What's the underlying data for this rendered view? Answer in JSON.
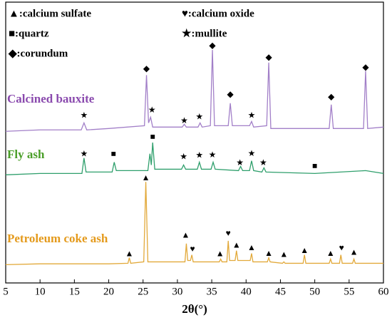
{
  "chart_data": {
    "type": "line",
    "xlabel": "2θ(°)",
    "xlim": [
      5,
      60
    ],
    "xticks": [
      5,
      10,
      15,
      20,
      25,
      30,
      35,
      40,
      45,
      50,
      55,
      60
    ],
    "ylim": [
      0,
      100
    ],
    "legend_items": [
      "▲:calcium sulfate",
      "♥:calcium oxide",
      "■:quartz",
      "★:mullite",
      "◆:corundum"
    ],
    "series": [
      {
        "name": "Calcined bauxite",
        "color": "#a27fc8",
        "label_color": "#8a4aae",
        "x": [
          5,
          10,
          15,
          16.0,
          16.4,
          16.8,
          20,
          25.2,
          25.5,
          25.8,
          26.1,
          26.4,
          30,
          30.7,
          31.0,
          31.3,
          33.0,
          33.3,
          33.6,
          34.8,
          35.1,
          35.4,
          37.4,
          37.7,
          38.0,
          40.5,
          40.8,
          41.1,
          43.0,
          43.3,
          43.6,
          50,
          52.1,
          52.4,
          52.7,
          55,
          57.1,
          57.4,
          57.7,
          60
        ],
        "values": [
          54,
          54.5,
          54.5,
          54.5,
          57,
          54.5,
          55,
          56,
          74,
          57,
          59,
          55.5,
          55.5,
          55.5,
          56.5,
          55.5,
          55.5,
          57,
          55.5,
          56,
          83,
          56,
          56,
          64,
          56,
          56,
          57.5,
          55.5,
          56,
          78.5,
          55,
          55,
          55,
          63.5,
          55,
          55,
          55,
          75.5,
          55,
          55.5
        ],
        "markers": [
          {
            "symbol": "★",
            "x": 16.4,
            "y": 59.4
          },
          {
            "symbol": "◆",
            "x": 25.5,
            "y": 76.1
          },
          {
            "symbol": "★",
            "x": 26.3,
            "y": 61.4
          },
          {
            "symbol": "★",
            "x": 31.0,
            "y": 57.6
          },
          {
            "symbol": "★",
            "x": 33.2,
            "y": 58.9
          },
          {
            "symbol": "◆",
            "x": 35.1,
            "y": 84.3
          },
          {
            "symbol": "◆",
            "x": 37.7,
            "y": 67
          },
          {
            "symbol": "★",
            "x": 40.8,
            "y": 59.4
          },
          {
            "symbol": "◆",
            "x": 43.3,
            "y": 80.2
          },
          {
            "symbol": "◆",
            "x": 52.4,
            "y": 66
          },
          {
            "symbol": "◆",
            "x": 57.4,
            "y": 76.6
          }
        ]
      },
      {
        "name": "Fly ash",
        "color": "#2f9f6c",
        "label_color": "#4a9e28",
        "x": [
          5,
          10,
          16.1,
          16.4,
          16.7,
          20.5,
          20.8,
          21.1,
          25.7,
          26.0,
          26.2,
          26.4,
          26.7,
          30.6,
          30.9,
          31.2,
          32.9,
          33.2,
          33.5,
          34.9,
          35.2,
          35.5,
          38.9,
          39.2,
          39.5,
          40.5,
          40.8,
          41.1,
          42.3,
          42.6,
          42.9,
          50,
          57.4,
          60
        ],
        "values": [
          38.5,
          39,
          39,
          44.5,
          39.5,
          39.5,
          43,
          40,
          40,
          46,
          42,
          50,
          40.5,
          40.5,
          42,
          40.5,
          40.5,
          43,
          40.5,
          40.5,
          43,
          40.5,
          40,
          41.5,
          40,
          40,
          43.5,
          40,
          39.5,
          41,
          39.5,
          39,
          40,
          39
        ],
        "markers": [
          {
            "symbol": "★",
            "x": 16.4,
            "y": 45.7
          },
          {
            "symbol": "■",
            "x": 20.7,
            "y": 45.7
          },
          {
            "symbol": "■",
            "x": 26.4,
            "y": 51.8
          },
          {
            "symbol": "★",
            "x": 30.9,
            "y": 44.7
          },
          {
            "symbol": "★",
            "x": 33.2,
            "y": 45.2
          },
          {
            "symbol": "★",
            "x": 35.1,
            "y": 45.4
          },
          {
            "symbol": "★",
            "x": 39.1,
            "y": 42.6
          },
          {
            "symbol": "★",
            "x": 40.8,
            "y": 45.9
          },
          {
            "symbol": "★",
            "x": 42.5,
            "y": 42.6
          },
          {
            "symbol": "■",
            "x": 50,
            "y": 41.4
          }
        ]
      },
      {
        "name": "Petroleum coke ash",
        "color": "#e2a93a",
        "label_color": "#e49a1c",
        "x": [
          5,
          10,
          20,
          22.8,
          23.0,
          23.2,
          25.1,
          25.4,
          25.7,
          28,
          31.1,
          31.3,
          31.5,
          31.9,
          32.1,
          32.3,
          36.1,
          36.3,
          36.5,
          37.2,
          37.4,
          37.6,
          38.4,
          38.6,
          38.8,
          40.6,
          40.8,
          41.0,
          43.1,
          43.3,
          43.5,
          45.3,
          45.5,
          45.7,
          48.3,
          48.5,
          48.7,
          52.1,
          52.3,
          52.5,
          53.6,
          53.8,
          54.0,
          55.5,
          55.7,
          55.9,
          60
        ],
        "values": [
          6.5,
          6.8,
          6.8,
          7,
          9,
          7,
          7.5,
          36,
          7.5,
          7.5,
          7.5,
          14,
          8,
          8,
          10,
          7.5,
          7.5,
          8.5,
          7.5,
          7.5,
          15,
          8,
          8,
          11.5,
          8,
          8,
          10.5,
          7.5,
          7.5,
          9,
          7.5,
          7,
          7.5,
          7,
          7,
          10,
          7,
          7,
          8.5,
          7,
          7,
          10,
          7,
          7,
          8.5,
          7,
          7
        ],
        "markers": [
          {
            "symbol": "▲",
            "x": 23.0,
            "y": 10.2
          },
          {
            "symbol": "▲",
            "x": 25.4,
            "y": 37.3
          },
          {
            "symbol": "▲",
            "x": 31.2,
            "y": 16.8
          },
          {
            "symbol": "♥",
            "x": 32.2,
            "y": 11.9
          },
          {
            "symbol": "▲",
            "x": 36.2,
            "y": 10.2
          },
          {
            "symbol": "♥",
            "x": 37.4,
            "y": 17.5
          },
          {
            "symbol": "▲",
            "x": 38.6,
            "y": 13.2
          },
          {
            "symbol": "▲",
            "x": 40.8,
            "y": 12.4
          },
          {
            "symbol": "▲",
            "x": 43.3,
            "y": 10.4
          },
          {
            "symbol": "▲",
            "x": 45.5,
            "y": 9.9
          },
          {
            "symbol": "▲",
            "x": 48.5,
            "y": 11.4
          },
          {
            "symbol": "▲",
            "x": 52.3,
            "y": 10.4
          },
          {
            "symbol": "♥",
            "x": 53.9,
            "y": 12.2
          },
          {
            "symbol": "▲",
            "x": 55.7,
            "y": 10.7
          }
        ]
      }
    ]
  }
}
